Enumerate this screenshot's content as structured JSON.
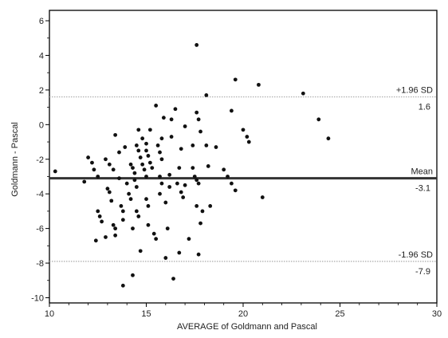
{
  "chart_data": {
    "type": "scatter",
    "title": "",
    "xlabel": "AVERAGE of Goldmann and Pascal",
    "ylabel": "Goldmann - Pascal",
    "xlim": [
      10,
      30
    ],
    "ylim": [
      -10.3,
      6.6
    ],
    "xticks": [
      10,
      15,
      20,
      25,
      30
    ],
    "yticks": [
      -10,
      -8,
      -6,
      -4,
      -2,
      0,
      2,
      4,
      6
    ],
    "grid": false,
    "reference_lines": [
      {
        "label": "+1.96 SD",
        "value_label": "1.6",
        "y": 1.6,
        "style": "dotted"
      },
      {
        "label": "Mean",
        "value_label": "-3.1",
        "y": -3.1,
        "style": "solid"
      },
      {
        "label": "-1.96 SD",
        "value_label": "-7.9",
        "y": -7.9,
        "style": "dotted"
      }
    ],
    "points": [
      [
        10.3,
        -2.7
      ],
      [
        11.8,
        -3.3
      ],
      [
        12.0,
        -1.9
      ],
      [
        12.2,
        -2.2
      ],
      [
        12.3,
        -2.6
      ],
      [
        12.5,
        -3.0
      ],
      [
        12.5,
        -5.0
      ],
      [
        12.6,
        -5.3
      ],
      [
        12.7,
        -5.6
      ],
      [
        12.4,
        -6.7
      ],
      [
        12.9,
        -6.5
      ],
      [
        12.9,
        -2.0
      ],
      [
        13.0,
        -3.7
      ],
      [
        13.1,
        -3.9
      ],
      [
        13.2,
        -4.4
      ],
      [
        13.3,
        -5.8
      ],
      [
        13.4,
        -6.0
      ],
      [
        13.4,
        -6.4
      ],
      [
        13.1,
        -2.3
      ],
      [
        13.3,
        -2.6
      ],
      [
        13.4,
        -0.6
      ],
      [
        13.6,
        -3.1
      ],
      [
        13.7,
        -4.7
      ],
      [
        13.8,
        -5.0
      ],
      [
        13.8,
        -5.5
      ],
      [
        13.6,
        -1.6
      ],
      [
        13.8,
        -9.3
      ],
      [
        13.9,
        -1.3
      ],
      [
        14.0,
        -3.4
      ],
      [
        14.1,
        -4.0
      ],
      [
        14.2,
        -4.3
      ],
      [
        14.3,
        -6.0
      ],
      [
        14.2,
        -2.3
      ],
      [
        14.3,
        -2.5
      ],
      [
        14.4,
        -2.8
      ],
      [
        14.4,
        -3.2
      ],
      [
        14.5,
        -3.6
      ],
      [
        14.5,
        -5.0
      ],
      [
        14.6,
        -5.3
      ],
      [
        14.6,
        -0.3
      ],
      [
        14.3,
        -8.7
      ],
      [
        14.7,
        -7.3
      ],
      [
        14.5,
        -1.2
      ],
      [
        14.6,
        -1.5
      ],
      [
        14.7,
        -1.9
      ],
      [
        14.8,
        -2.3
      ],
      [
        14.9,
        -2.6
      ],
      [
        15.0,
        -3.0
      ],
      [
        15.0,
        -4.3
      ],
      [
        15.1,
        -4.7
      ],
      [
        15.1,
        -5.8
      ],
      [
        14.8,
        -0.8
      ],
      [
        15.0,
        -1.1
      ],
      [
        15.0,
        -1.5
      ],
      [
        15.1,
        -1.8
      ],
      [
        15.2,
        -2.2
      ],
      [
        15.3,
        -2.5
      ],
      [
        15.4,
        -6.3
      ],
      [
        15.5,
        -6.6
      ],
      [
        15.2,
        -0.3
      ],
      [
        15.5,
        1.1
      ],
      [
        15.6,
        -1.2
      ],
      [
        15.7,
        -1.6
      ],
      [
        15.8,
        -2.0
      ],
      [
        15.7,
        -3.0
      ],
      [
        15.8,
        -3.4
      ],
      [
        15.7,
        -4.0
      ],
      [
        15.8,
        -0.8
      ],
      [
        15.9,
        0.4
      ],
      [
        16.0,
        -7.7
      ],
      [
        16.1,
        -6.0
      ],
      [
        16.0,
        -4.5
      ],
      [
        16.2,
        -3.6
      ],
      [
        16.2,
        -2.9
      ],
      [
        16.3,
        -0.7
      ],
      [
        16.3,
        0.3
      ],
      [
        16.5,
        0.9
      ],
      [
        16.4,
        -8.9
      ],
      [
        16.7,
        -7.4
      ],
      [
        16.6,
        -3.4
      ],
      [
        16.7,
        -2.5
      ],
      [
        16.8,
        -1.4
      ],
      [
        16.8,
        -3.9
      ],
      [
        16.9,
        -4.2
      ],
      [
        17.0,
        -0.1
      ],
      [
        17.0,
        -3.5
      ],
      [
        17.2,
        -6.6
      ],
      [
        17.4,
        -1.2
      ],
      [
        17.4,
        -2.5
      ],
      [
        17.5,
        -3.0
      ],
      [
        17.6,
        -3.2
      ],
      [
        17.7,
        -3.4
      ],
      [
        17.6,
        -4.7
      ],
      [
        17.7,
        -7.5
      ],
      [
        17.6,
        0.7
      ],
      [
        17.7,
        0.3
      ],
      [
        17.8,
        -0.4
      ],
      [
        17.8,
        -5.7
      ],
      [
        17.6,
        4.6
      ],
      [
        17.9,
        -5.0
      ],
      [
        18.1,
        1.7
      ],
      [
        18.1,
        -1.2
      ],
      [
        18.2,
        -2.4
      ],
      [
        18.3,
        -4.7
      ],
      [
        18.6,
        -1.3
      ],
      [
        19.0,
        -2.6
      ],
      [
        19.2,
        -3.0
      ],
      [
        19.4,
        -3.4
      ],
      [
        19.6,
        -3.8
      ],
      [
        19.4,
        0.8
      ],
      [
        19.6,
        2.6
      ],
      [
        20.0,
        -0.3
      ],
      [
        20.2,
        -0.7
      ],
      [
        20.3,
        -1.0
      ],
      [
        20.8,
        2.3
      ],
      [
        21.0,
        -4.2
      ],
      [
        23.1,
        1.8
      ],
      [
        23.9,
        0.3
      ],
      [
        24.4,
        -0.8
      ]
    ]
  }
}
